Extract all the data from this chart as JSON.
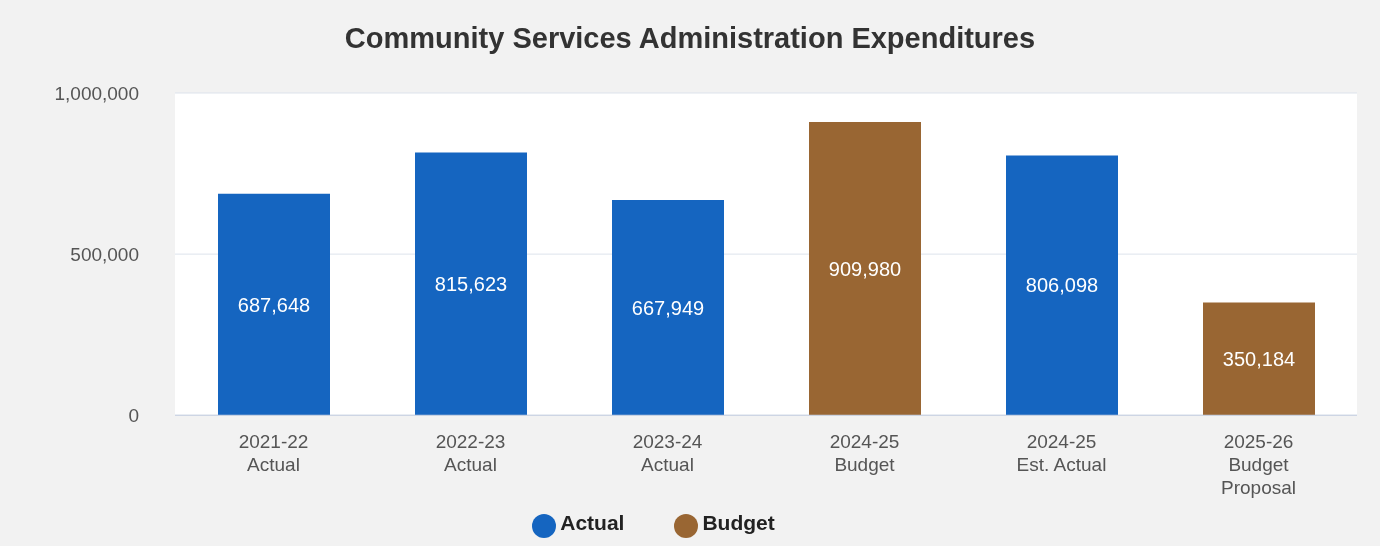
{
  "chart_data": {
    "type": "bar",
    "title": "Community Services Administration Expenditures",
    "categories": [
      "2021-22\nActual",
      "2022-23\nActual",
      "2023-24\nActual",
      "2024-25\nBudget",
      "2024-25\nEst. Actual",
      "2025-26\nBudget\nProposal"
    ],
    "series": [
      {
        "name": "Actual",
        "color": "#1565c0",
        "values": [
          687648,
          815623,
          667949,
          null,
          806098,
          null
        ],
        "value_labels": [
          "687,648",
          "815,623",
          "667,949",
          null,
          "806,098",
          null
        ]
      },
      {
        "name": "Budget",
        "color": "#996633",
        "values": [
          null,
          null,
          null,
          909980,
          null,
          350184
        ],
        "value_labels": [
          null,
          null,
          null,
          "909,980",
          null,
          "350,184"
        ]
      }
    ],
    "stacked": true,
    "ylim": [
      0,
      1000000
    ],
    "yticks": [
      0,
      {
        "value": 500000,
        "label": "500,000"
      },
      {
        "value": 1000000,
        "label": "1,000,000"
      }
    ],
    "grid": "y",
    "legend": "bottom"
  }
}
